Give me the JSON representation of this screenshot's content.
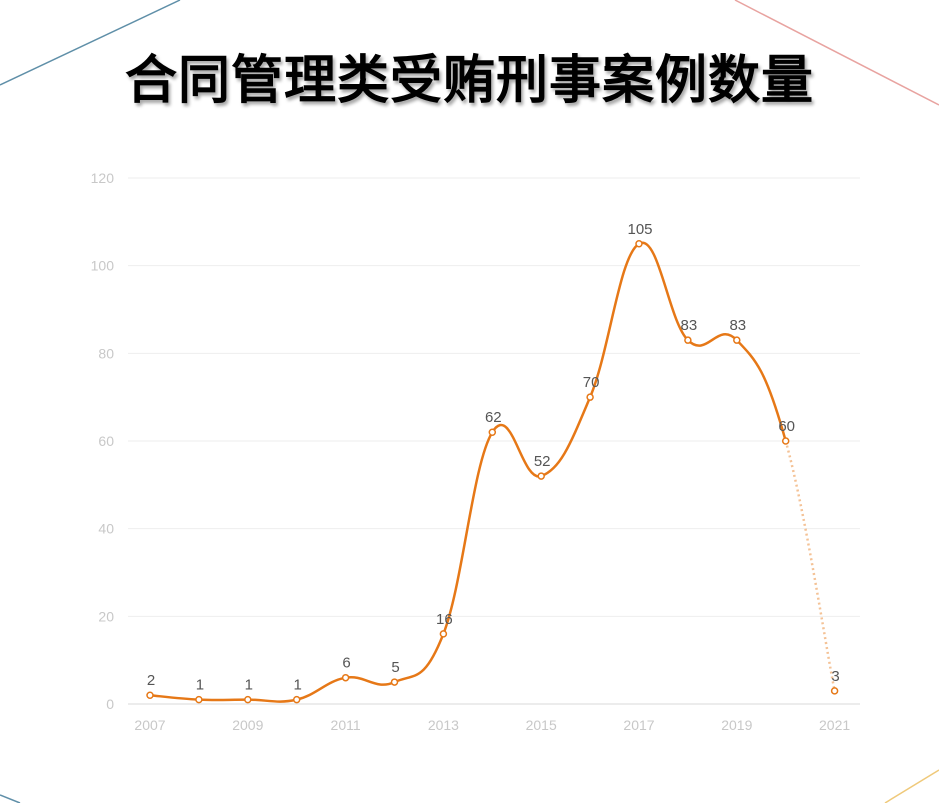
{
  "colors": {
    "line": "#E67817",
    "point_fill": "#ffffff",
    "grid": "#eeeeee",
    "axis_text": "#c8c8c8",
    "label_text": "#555555",
    "deco_blue": "#5f8fa8",
    "deco_pink": "#e8a3a0",
    "deco_yellow": "#efc97a"
  },
  "chart_data": {
    "type": "line",
    "title": "合同管理类受贿刑事案例数量",
    "xlabel": "",
    "ylabel": "",
    "x": [
      2007,
      2008,
      2009,
      2010,
      2011,
      2012,
      2013,
      2014,
      2015,
      2016,
      2017,
      2018,
      2019,
      2020,
      2021
    ],
    "values": [
      2,
      1,
      1,
      1,
      6,
      5,
      16,
      62,
      52,
      70,
      105,
      83,
      83,
      60,
      3
    ],
    "x_tick_labels": [
      "2007",
      "2009",
      "2011",
      "2013",
      "2015",
      "2017",
      "2019",
      "2021"
    ],
    "y_tick_labels": [
      "0",
      "20",
      "40",
      "60",
      "80",
      "100",
      "120"
    ],
    "ylim": [
      0,
      120
    ],
    "grid": true,
    "legend": "none",
    "dotted_last_segment": true
  }
}
